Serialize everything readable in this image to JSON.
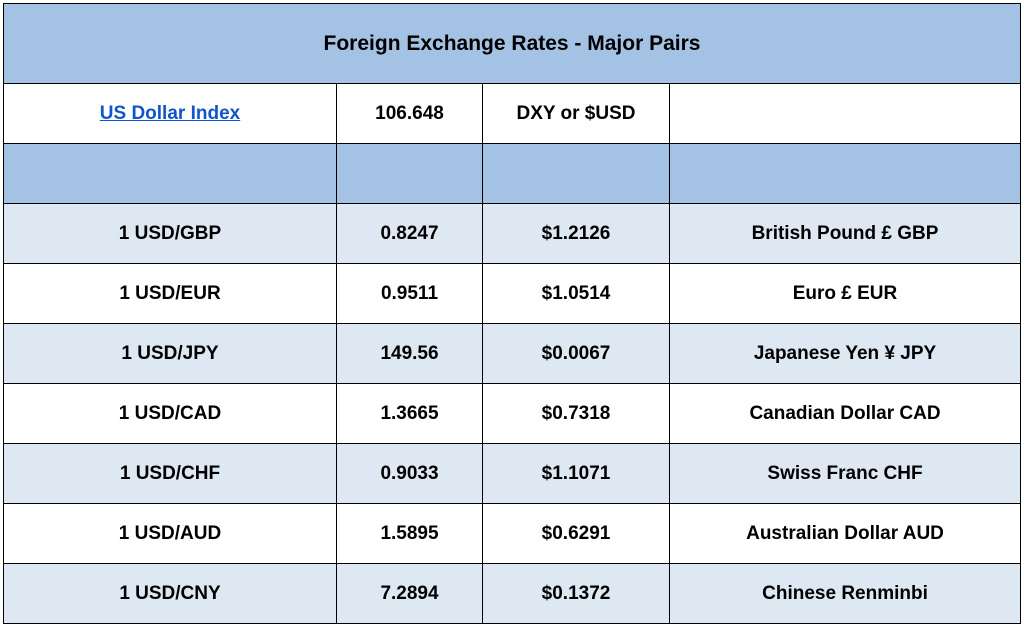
{
  "title": "Foreign Exchange Rates - Major Pairs",
  "index": {
    "name": "US Dollar Index",
    "value": "106.648",
    "symbol": "DXY or $USD",
    "note": ""
  },
  "rates": [
    {
      "pair": "1 USD/GBP",
      "rate": "0.8247",
      "usd_value": "$1.2126",
      "currency": "British Pound £ GBP"
    },
    {
      "pair": "1 USD/EUR",
      "rate": "0.9511",
      "usd_value": "$1.0514",
      "currency": "Euro £ EUR"
    },
    {
      "pair": "1 USD/JPY",
      "rate": "149.56",
      "usd_value": "$0.0067",
      "currency": "Japanese Yen ¥ JPY"
    },
    {
      "pair": "1 USD/CAD",
      "rate": "1.3665",
      "usd_value": "$0.7318",
      "currency": "Canadian Dollar CAD"
    },
    {
      "pair": "1 USD/CHF",
      "rate": "0.9033",
      "usd_value": "$1.1071",
      "currency": "Swiss Franc CHF"
    },
    {
      "pair": "1 USD/AUD",
      "rate": "1.5895",
      "usd_value": "$0.6291",
      "currency": "Australian Dollar AUD"
    },
    {
      "pair": "1 USD/CNY",
      "rate": "7.2894",
      "usd_value": "$0.1372",
      "currency": "Chinese Renminbi"
    }
  ],
  "colors": {
    "header_fill": "#a4c2e3",
    "shaded_row": "#dde8f3",
    "link": "#1155cc",
    "border": "#000000"
  }
}
